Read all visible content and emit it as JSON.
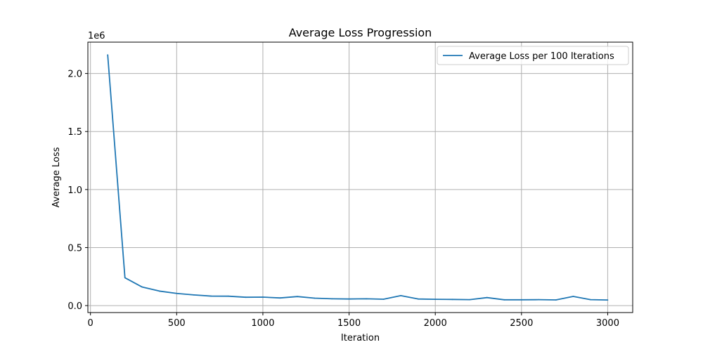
{
  "chart_data": {
    "type": "line",
    "title": "Average Loss Progression",
    "xlabel": "Iteration",
    "ylabel": "Average Loss",
    "y_offset_text": "1e6",
    "y_scale_factor": 1000000,
    "xlim": [
      -15,
      3145
    ],
    "ylim": [
      -60000,
      2270000
    ],
    "xticks": [
      0,
      500,
      1000,
      1500,
      2000,
      2500,
      3000
    ],
    "xtick_labels": [
      "0",
      "500",
      "1000",
      "1500",
      "2000",
      "2500",
      "3000"
    ],
    "yticks": [
      0,
      500000,
      1000000,
      1500000,
      2000000
    ],
    "ytick_labels": [
      "0.0",
      "0.5",
      "1.0",
      "1.5",
      "2.0"
    ],
    "grid": true,
    "legend_position": "top-right",
    "series": [
      {
        "name": "Average Loss per 100 Iterations",
        "color": "#1f77b4",
        "x": [
          100,
          200,
          300,
          400,
          500,
          600,
          700,
          800,
          900,
          1000,
          1100,
          1200,
          1300,
          1400,
          1500,
          1600,
          1700,
          1800,
          1900,
          2000,
          2100,
          2200,
          2300,
          2400,
          2500,
          2600,
          2700,
          2800,
          2900,
          3000
        ],
        "values": [
          2160000,
          240000,
          160000,
          125000,
          105000,
          92000,
          82000,
          81000,
          72000,
          73000,
          66000,
          78000,
          64000,
          59000,
          57000,
          59000,
          55000,
          86000,
          57000,
          54000,
          53000,
          51000,
          69000,
          50000,
          50000,
          51000,
          49000,
          79000,
          51000,
          48000
        ]
      }
    ]
  }
}
